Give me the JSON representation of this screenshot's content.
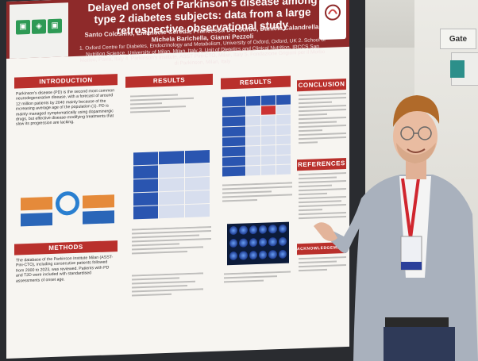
{
  "poster": {
    "title": "Delayed onset of Parkinson's disease among type 2 diabetes subjects: data from a large retrospective observational study",
    "authors": "Santo Colosimo, Emanuele Cereda, Francesca Del Sorbo, Daniela Calandrella, Michela Barichella, Gianni Pezzoli",
    "affiliations": "1. Oxford Centre for Diabetes, Endocrinology and Metabolism, University of Oxford, Oxford, UK  2. School of Nutrition Science, University of Milan, Milan, Italy  3. Unit of Dietetics and Clinical Nutrition, IRCCS San Matteo, Pavia, Italy  4. Parkinson's Institute, ASST Pini-CTO, Milan, Italy  5. Fondazione Grigioni per il Morbo di Parkinson, Milan, Italy",
    "sections": {
      "introduction": "INTRODUCTION",
      "results_1": "RESULTS",
      "results_2": "RESULTS",
      "conclusion": "CONCLUSION",
      "methods": "METHODS",
      "references": "REFERENCES",
      "acknowledgements": "ACKNOWLEDGEMENTS"
    },
    "intro_text": "Parkinson's disease (PD) is the second most common neurodegenerative disease, with a forecast of around 12 million patients by 2040 mainly because of the increasing average age of the population (1). PD is mainly managed symptomatically using dopaminergic drugs, but effective disease-modifying treatments that slow its progression are lacking.",
    "methods_text": "The database of the Parkinson Institute Milan (ASST-Pini-CTO), including consecutive patients followed from 2000 to 2023, was reviewed. Patients with PD and T2D were included with standardised assessments of onset age."
  },
  "scene": {
    "gate_sign": "Gate"
  }
}
